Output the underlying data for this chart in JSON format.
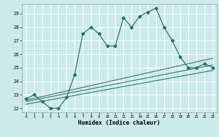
{
  "xlabel": "Humidex (Indice chaleur)",
  "bg_color": "#cceaea",
  "grid_color": "#ffffff",
  "line_color": "#2a6e6e",
  "xlim": [
    -0.5,
    23.5
  ],
  "ylim": [
    21.7,
    29.7
  ],
  "yticks": [
    22,
    23,
    24,
    25,
    26,
    27,
    28,
    29
  ],
  "xticks": [
    0,
    1,
    2,
    3,
    4,
    5,
    6,
    7,
    8,
    9,
    10,
    11,
    12,
    13,
    14,
    15,
    16,
    17,
    18,
    19,
    20,
    21,
    22,
    23
  ],
  "series1_x": [
    0,
    1,
    2,
    3,
    4,
    5,
    6,
    7,
    8,
    9,
    10,
    11,
    12,
    13,
    14,
    15,
    16,
    17,
    18,
    19,
    20,
    21,
    22,
    23
  ],
  "series1_y": [
    22.7,
    23.0,
    22.5,
    22.0,
    22.0,
    22.8,
    24.5,
    27.5,
    28.0,
    27.5,
    26.6,
    26.6,
    28.7,
    28.0,
    28.8,
    29.1,
    29.4,
    28.0,
    27.0,
    25.8,
    25.0,
    25.0,
    25.3,
    25.0
  ],
  "line2_x": [
    0,
    23
  ],
  "line2_y": [
    22.6,
    25.7
  ],
  "line3_x": [
    0,
    23
  ],
  "line3_y": [
    22.5,
    25.2
  ],
  "line4_x": [
    0,
    23
  ],
  "line4_y": [
    22.3,
    24.8
  ]
}
